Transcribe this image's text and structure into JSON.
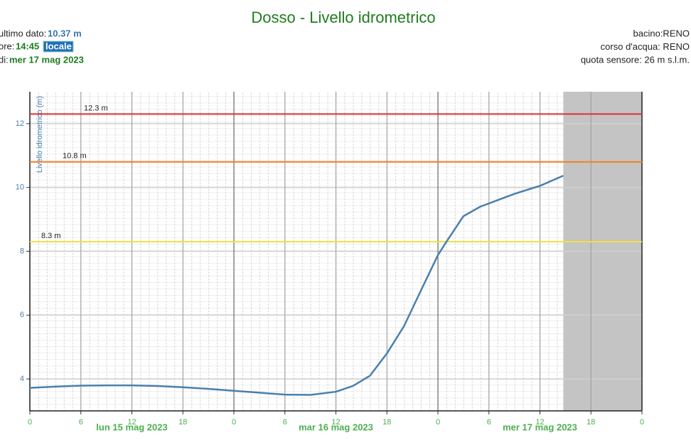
{
  "chart_data": {
    "type": "line",
    "title": "Dosso - Livello idrometrico",
    "info_left": {
      "last_value_label": "ultimo dato:",
      "last_value": "10.37 m",
      "time_label": "ore:",
      "time": "14:45",
      "time_zone": "locale",
      "date_label": "di:",
      "date": "mer 17 mag 2023"
    },
    "info_right": [
      "bacino:RENO",
      "corso d'acqua: RENO",
      "quota sensore: 26 m s.l.m."
    ],
    "y_label": "Livello idrometrico (m)",
    "x": [
      0,
      3,
      6,
      9,
      12,
      15,
      18,
      21,
      24,
      27,
      30,
      33,
      36,
      38,
      40,
      42,
      44,
      46,
      48,
      49,
      51,
      53,
      55,
      57,
      60,
      62.75
    ],
    "series": [
      {
        "name": "Livello idrometrico",
        "color": "#4a7fae",
        "values": [
          3.72,
          3.76,
          3.79,
          3.8,
          3.8,
          3.78,
          3.74,
          3.69,
          3.63,
          3.57,
          3.51,
          3.5,
          3.6,
          3.78,
          4.1,
          4.8,
          5.65,
          6.77,
          7.88,
          8.3,
          9.1,
          9.4,
          9.6,
          9.8,
          10.05,
          10.37
        ]
      }
    ],
    "xlim": [
      0,
      72
    ],
    "xticks": [
      0,
      6,
      12,
      18,
      {
        "value": 24,
        "label": "0"
      },
      {
        "value": 30,
        "label": "6"
      },
      {
        "value": 36,
        "label": "12"
      },
      {
        "value": 42,
        "label": "18"
      },
      {
        "value": 48,
        "label": "0"
      },
      {
        "value": 54,
        "label": "6"
      },
      {
        "value": 60,
        "label": "12"
      },
      {
        "value": 66,
        "label": "18"
      },
      {
        "value": 72,
        "label": "0"
      }
    ],
    "day_labels": [
      {
        "value": 12,
        "label": "lun 15 mag 2023"
      },
      {
        "value": 36,
        "label": "mar 16 mag 2023"
      },
      {
        "value": 60,
        "label": "mer 17 mag 2023"
      }
    ],
    "ylim": [
      3,
      13
    ],
    "yticks": [
      4,
      6,
      8,
      10,
      12
    ],
    "thresholds": [
      {
        "value": 12.3,
        "label": "12.3 m",
        "color": "#e03030"
      },
      {
        "value": 10.8,
        "label": "10.8 m",
        "color": "#f08020"
      },
      {
        "value": 8.3,
        "label": "8.3 m",
        "color": "#f0e040"
      }
    ],
    "shaded_range": [
      62.75,
      72
    ],
    "grid": true
  }
}
